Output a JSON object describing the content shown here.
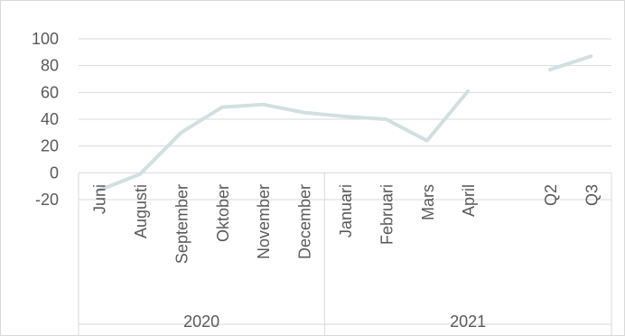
{
  "chart_data": {
    "type": "line",
    "title": "",
    "xlabel": "",
    "ylabel": "",
    "ylim": [
      -20,
      100
    ],
    "yticks": [
      -20,
      0,
      20,
      40,
      60,
      80,
      100
    ],
    "grid": true,
    "legend": "none",
    "categories": [
      "Juni",
      "Augusti",
      "September",
      "Oktober",
      "November",
      "December",
      "Januari",
      "Februari",
      "Mars",
      "April",
      "",
      "Q2",
      "Q3"
    ],
    "groups": [
      {
        "label": "2020",
        "span": 6
      },
      {
        "label": "2021",
        "span": 7
      }
    ],
    "series": [
      {
        "values": [
          -13,
          -1,
          30,
          49,
          51,
          45,
          42,
          40,
          24,
          61,
          null,
          77,
          87
        ]
      }
    ]
  },
  "colors": {
    "line": "#d2dfe1",
    "grid": "#d9d9d9",
    "text": "#595959"
  }
}
